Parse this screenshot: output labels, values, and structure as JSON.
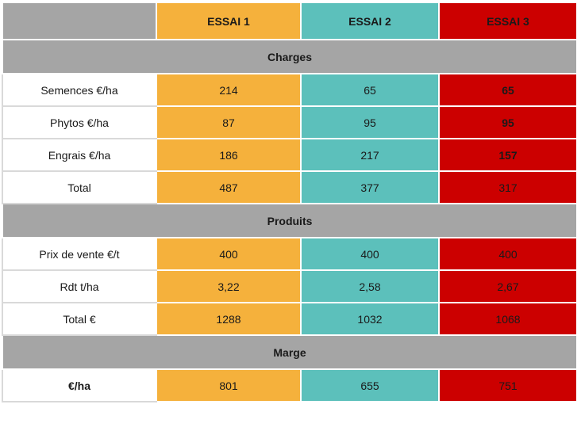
{
  "header": {
    "corner": "",
    "essai1": "ESSAI 1",
    "essai2": "ESSAI 2",
    "essai3": "ESSAI 3"
  },
  "sections": {
    "charges": "Charges",
    "produits": "Produits",
    "marge": "Marge"
  },
  "charges_rows": [
    {
      "label": "Semences €/ha",
      "e1": "214",
      "e2": "65",
      "e3": "65"
    },
    {
      "label": "Phytos €/ha",
      "e1": "87",
      "e2": "95",
      "e3": "95"
    },
    {
      "label": "Engrais €/ha",
      "e1": "186",
      "e2": "217",
      "e3": "157"
    },
    {
      "label": "Total",
      "e1": "487",
      "e2": "377",
      "e3": "317"
    }
  ],
  "produits_rows": [
    {
      "label": "Prix de vente €/t",
      "e1": "400",
      "e2": "400",
      "e3": "400"
    },
    {
      "label": "Rdt t/ha",
      "e1": "3,22",
      "e2": "2,58",
      "e3": "2,67"
    },
    {
      "label": "Total €",
      "e1": "1288",
      "e2": "1032",
      "e3": "1068"
    }
  ],
  "marge_rows": [
    {
      "label": "€/ha",
      "e1": "801",
      "e2": "655",
      "e3": "751"
    }
  ],
  "colors": {
    "essai1": "#f5b13c",
    "essai2": "#5cc0bb",
    "essai3": "#cc0000",
    "section": "#a5a5a5"
  }
}
